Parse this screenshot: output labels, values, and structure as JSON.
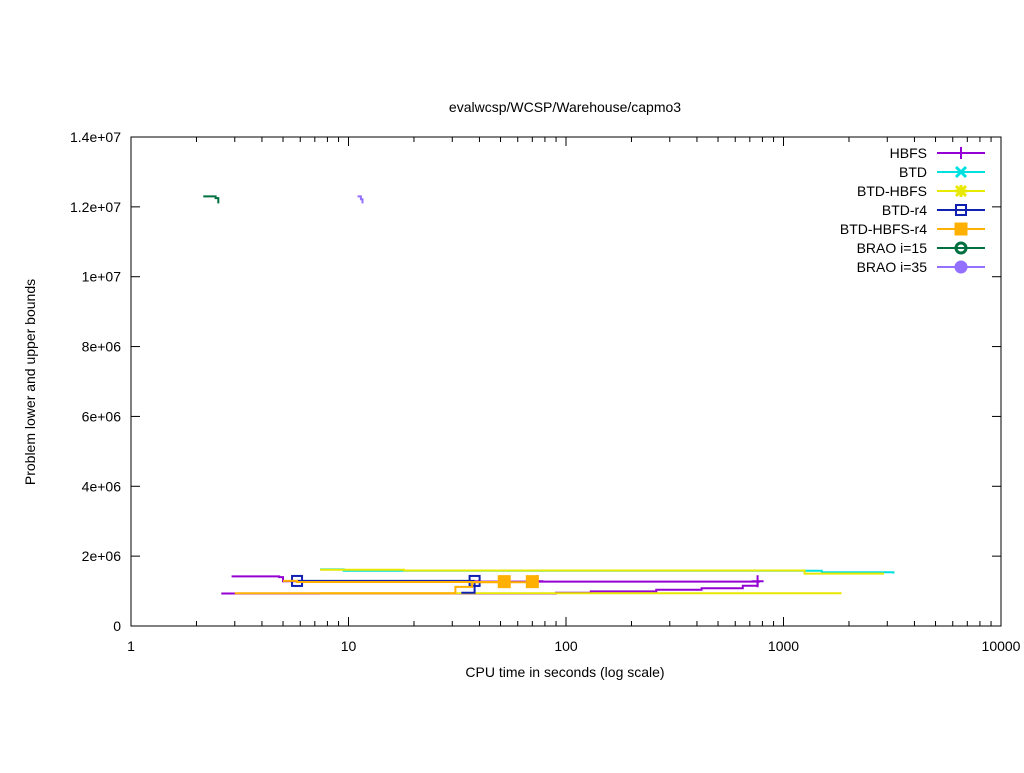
{
  "chart_data": {
    "type": "line",
    "title": "evalwcsp/WCSP/Warehouse/capmo3",
    "xlabel": "CPU time in seconds (log scale)",
    "ylabel": "Problem lower and upper bounds",
    "xscale": "log",
    "xlim": [
      1,
      10000
    ],
    "ylim": [
      0,
      14000000
    ],
    "x_ticks": [
      {
        "value": 1,
        "label": "1"
      },
      {
        "value": 10,
        "label": "10"
      },
      {
        "value": 100,
        "label": "100"
      },
      {
        "value": 1000,
        "label": "1000"
      },
      {
        "value": 10000,
        "label": "10000"
      }
    ],
    "y_ticks": [
      {
        "value": 0,
        "label": "0"
      },
      {
        "value": 2000000,
        "label": "2e+06"
      },
      {
        "value": 4000000,
        "label": "4e+06"
      },
      {
        "value": 6000000,
        "label": "6e+06"
      },
      {
        "value": 8000000,
        "label": "8e+06"
      },
      {
        "value": 10000000,
        "label": "1e+07"
      },
      {
        "value": 12000000,
        "label": "1.2e+07"
      },
      {
        "value": 14000000,
        "label": "1.4e+07"
      }
    ],
    "grid": false,
    "legend_position": "top-right",
    "series": [
      {
        "name": "HBFS",
        "color": "#9400d3",
        "marker": "plus",
        "upper": [
          [
            2.9,
            1420000
          ],
          [
            4.8,
            1420000
          ],
          [
            4.8,
            1400000
          ],
          [
            5.0,
            1400000
          ],
          [
            5.0,
            1280000
          ],
          [
            40,
            1280000
          ],
          [
            40,
            1270000
          ],
          [
            780,
            1270000
          ]
        ],
        "lower": [
          [
            2.6,
            930000
          ],
          [
            90,
            930000
          ],
          [
            90,
            950000
          ],
          [
            130,
            950000
          ],
          [
            130,
            990000
          ],
          [
            260,
            990000
          ],
          [
            260,
            1040000
          ],
          [
            420,
            1040000
          ],
          [
            420,
            1080000
          ],
          [
            650,
            1080000
          ],
          [
            650,
            1150000
          ],
          [
            760,
            1150000
          ],
          [
            760,
            1280000
          ]
        ],
        "markers": [
          [
            74,
            1280000
          ],
          [
            760,
            1280000
          ]
        ]
      },
      {
        "name": "BTD",
        "color": "#00e0e0",
        "marker": "x",
        "upper": [
          [
            7.4,
            1620000
          ],
          [
            9.5,
            1620000
          ],
          [
            9.5,
            1580000
          ],
          [
            1500,
            1580000
          ],
          [
            1500,
            1540000
          ],
          [
            3200,
            1540000
          ],
          [
            3200,
            1500000
          ]
        ],
        "lower": [],
        "markers": []
      },
      {
        "name": "BTD-HBFS",
        "color": "#e8e800",
        "marker": "star",
        "upper": [
          [
            7.4,
            1610000
          ],
          [
            18,
            1610000
          ],
          [
            18,
            1590000
          ],
          [
            1250,
            1590000
          ],
          [
            1250,
            1500000
          ],
          [
            2900,
            1500000
          ]
        ],
        "lower": [
          [
            7.4,
            940000
          ],
          [
            1850,
            940000
          ]
        ],
        "markers": []
      },
      {
        "name": "BTD-r4",
        "color": "#1020b0",
        "marker": "square",
        "upper": [
          [
            5.8,
            1290000
          ],
          [
            38,
            1290000
          ]
        ],
        "lower": [
          [
            33,
            950000
          ],
          [
            38,
            950000
          ],
          [
            38,
            1290000
          ]
        ],
        "markers": [
          [
            5.8,
            1290000
          ],
          [
            38,
            1290000
          ]
        ]
      },
      {
        "name": "BTD-HBFS-r4",
        "color": "#ffb000",
        "marker": "filled-square",
        "upper": [
          [
            5.0,
            1290000
          ],
          [
            5.8,
            1290000
          ],
          [
            5.8,
            1260000
          ],
          [
            52,
            1260000
          ],
          [
            52,
            1250000
          ],
          [
            70,
            1250000
          ]
        ],
        "lower": [
          [
            3.0,
            940000
          ],
          [
            31,
            940000
          ],
          [
            31,
            1120000
          ],
          [
            37,
            1120000
          ],
          [
            37,
            1250000
          ],
          [
            52,
            1250000
          ]
        ],
        "markers": [
          [
            52,
            1270000
          ],
          [
            70,
            1270000
          ]
        ]
      },
      {
        "name": "BRAO i=15",
        "color": "#007040",
        "marker": "circle",
        "upper": [
          [
            2.15,
            12300000
          ],
          [
            2.45,
            12300000
          ],
          [
            2.45,
            12250000
          ],
          [
            2.52,
            12250000
          ],
          [
            2.52,
            12100000
          ]
        ],
        "lower": [],
        "markers": []
      },
      {
        "name": "BRAO i=35",
        "color": "#9370ff",
        "marker": "filled-circle",
        "upper": [
          [
            11.0,
            12300000
          ],
          [
            11.4,
            12300000
          ],
          [
            11.4,
            12220000
          ],
          [
            11.6,
            12220000
          ],
          [
            11.6,
            12100000
          ]
        ],
        "lower": [],
        "markers": []
      }
    ]
  }
}
